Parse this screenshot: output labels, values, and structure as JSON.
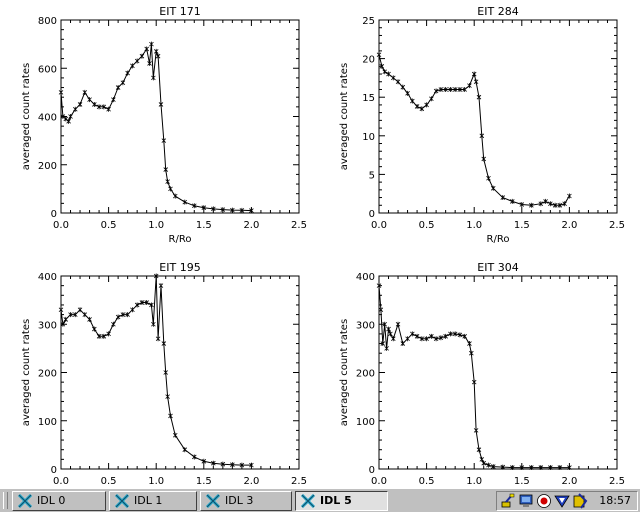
{
  "chart_data": [
    {
      "type": "line",
      "title": "EIT 171",
      "xlabel": "R/Ro",
      "ylabel": "averaged count rates",
      "xlim": [
        0,
        2.5
      ],
      "ylim": [
        0,
        800
      ],
      "xticks": [
        "0.0",
        "0.5",
        "1.0",
        "1.5",
        "2.0",
        "2.5"
      ],
      "yticks": [
        "0",
        "200",
        "400",
        "600",
        "800"
      ],
      "grid": false,
      "series": [
        {
          "x": [
            0,
            0.02,
            0.05,
            0.08,
            0.1,
            0.15,
            0.2,
            0.25,
            0.3,
            0.35,
            0.4,
            0.45,
            0.5,
            0.55,
            0.6,
            0.65,
            0.7,
            0.75,
            0.8,
            0.85,
            0.9,
            0.93,
            0.95,
            0.97,
            1.0,
            1.02,
            1.05,
            1.08,
            1.1,
            1.12,
            1.15,
            1.2,
            1.3,
            1.4,
            1.5,
            1.6,
            1.7,
            1.8,
            1.9,
            2.0
          ],
          "y": [
            500,
            400,
            390,
            380,
            400,
            430,
            450,
            500,
            470,
            450,
            440,
            440,
            430,
            470,
            520,
            540,
            580,
            610,
            630,
            650,
            680,
            620,
            700,
            560,
            670,
            650,
            450,
            300,
            180,
            130,
            100,
            70,
            45,
            30,
            22,
            17,
            14,
            12,
            11,
            10
          ]
        }
      ]
    },
    {
      "type": "line",
      "title": "EIT 284",
      "xlabel": "R/Ro",
      "ylabel": "averaged count rates",
      "xlim": [
        0,
        2.5
      ],
      "ylim": [
        0,
        25
      ],
      "xticks": [
        "0.0",
        "0.5",
        "1.0",
        "1.5",
        "2.0",
        "2.5"
      ],
      "yticks": [
        "0",
        "5",
        "10",
        "15",
        "20",
        "25"
      ],
      "grid": false,
      "series": [
        {
          "x": [
            0,
            0.03,
            0.06,
            0.1,
            0.15,
            0.2,
            0.25,
            0.3,
            0.35,
            0.4,
            0.45,
            0.5,
            0.55,
            0.6,
            0.65,
            0.7,
            0.75,
            0.8,
            0.85,
            0.9,
            0.95,
            1.0,
            1.02,
            1.05,
            1.08,
            1.1,
            1.15,
            1.2,
            1.3,
            1.4,
            1.5,
            1.6,
            1.7,
            1.75,
            1.8,
            1.85,
            1.9,
            1.95,
            2.0
          ],
          "y": [
            20.5,
            19,
            18.3,
            18,
            17.5,
            17,
            16.3,
            15.5,
            14.5,
            13.8,
            13.5,
            14,
            14.8,
            15.8,
            16,
            16,
            16,
            16,
            16,
            16,
            16.5,
            18,
            17,
            15,
            10,
            7,
            4.5,
            3.2,
            2,
            1.5,
            1.1,
            1,
            1.2,
            1.5,
            1.2,
            1,
            1,
            1.2,
            2.2
          ]
        }
      ]
    },
    {
      "type": "line",
      "title": "EIT 195",
      "xlabel": "",
      "ylabel": "averaged count rates",
      "xlim": [
        0,
        2.5
      ],
      "ylim": [
        0,
        400
      ],
      "xticks": [
        "0.0",
        "0.5",
        "1.0",
        "1.5",
        "2.0",
        "2.5"
      ],
      "yticks": [
        "0",
        "100",
        "200",
        "300",
        "400"
      ],
      "grid": false,
      "series": [
        {
          "x": [
            0,
            0.02,
            0.05,
            0.1,
            0.15,
            0.2,
            0.25,
            0.3,
            0.35,
            0.4,
            0.45,
            0.5,
            0.55,
            0.6,
            0.65,
            0.7,
            0.75,
            0.8,
            0.85,
            0.9,
            0.95,
            0.97,
            1.0,
            1.02,
            1.05,
            1.08,
            1.1,
            1.12,
            1.15,
            1.2,
            1.3,
            1.4,
            1.5,
            1.6,
            1.7,
            1.8,
            1.9,
            2.0
          ],
          "y": [
            330,
            300,
            310,
            320,
            320,
            330,
            320,
            310,
            290,
            275,
            275,
            280,
            300,
            315,
            320,
            320,
            330,
            340,
            345,
            345,
            340,
            300,
            400,
            270,
            380,
            260,
            200,
            150,
            110,
            70,
            40,
            25,
            16,
            12,
            10,
            9,
            8,
            8
          ]
        }
      ]
    },
    {
      "type": "line",
      "title": "EIT 304",
      "xlabel": "",
      "ylabel": "averaged count rates",
      "xlim": [
        0,
        2.5
      ],
      "ylim": [
        0,
        400
      ],
      "xticks": [
        "0.0",
        "0.5",
        "1.0",
        "1.5",
        "2.0",
        "2.5"
      ],
      "yticks": [
        "0",
        "100",
        "200",
        "300",
        "400"
      ],
      "grid": false,
      "series": [
        {
          "x": [
            0,
            0.02,
            0.04,
            0.06,
            0.08,
            0.1,
            0.12,
            0.15,
            0.2,
            0.25,
            0.3,
            0.35,
            0.4,
            0.45,
            0.5,
            0.55,
            0.6,
            0.65,
            0.7,
            0.75,
            0.8,
            0.85,
            0.9,
            0.95,
            0.97,
            1.0,
            1.02,
            1.05,
            1.08,
            1.1,
            1.15,
            1.2,
            1.3,
            1.4,
            1.5,
            1.6,
            1.7,
            1.8,
            1.9,
            2.0
          ],
          "y": [
            380,
            330,
            260,
            300,
            250,
            290,
            280,
            270,
            300,
            260,
            270,
            280,
            275,
            270,
            270,
            275,
            270,
            272,
            275,
            280,
            280,
            278,
            275,
            260,
            240,
            180,
            80,
            40,
            20,
            12,
            8,
            5,
            4,
            3,
            3,
            3,
            3,
            3,
            3,
            3
          ]
        }
      ]
    }
  ],
  "taskbar": {
    "tasks": [
      {
        "label": "IDL 0",
        "active": false
      },
      {
        "label": "IDL 1",
        "active": false
      },
      {
        "label": "IDL 3",
        "active": false
      },
      {
        "label": "IDL 5",
        "active": true
      }
    ],
    "tray_icons": [
      "network-icon",
      "monitor-icon",
      "record-icon",
      "antivirus-icon",
      "security-icon"
    ],
    "clock": "18:57"
  }
}
